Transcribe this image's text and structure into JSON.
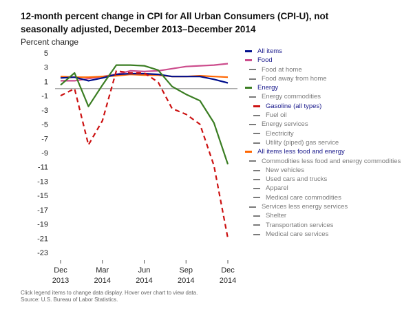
{
  "title": "12-month percent change in CPI for All Urban Consumers (CPI-U), not seasonally adjusted, December 2013–December 2014",
  "footnote": {
    "line1": "Click legend items to change data display. Hover over chart to view data.",
    "line2": "Source: U.S. Bureau of Labor Statistics."
  },
  "chart_data": {
    "type": "line",
    "ylabel": "Percent change",
    "ylim": [
      -23,
      5
    ],
    "yticks": [
      5,
      3,
      1,
      -1,
      -3,
      -5,
      -7,
      -9,
      -11,
      -13,
      -15,
      -17,
      -19,
      -21,
      -23
    ],
    "x": [
      "Dec 2013",
      "Jan 2014",
      "Feb 2014",
      "Mar 2014",
      "Apr 2014",
      "May 2014",
      "Jun 2014",
      "Jul 2014",
      "Aug 2014",
      "Sep 2014",
      "Oct 2014",
      "Nov 2014",
      "Dec 2014"
    ],
    "xticks": [
      {
        "index": 0,
        "line1": "Dec",
        "line2": "2013"
      },
      {
        "index": 3,
        "line1": "Mar",
        "line2": "2014"
      },
      {
        "index": 6,
        "line1": "Jun",
        "line2": "2014"
      },
      {
        "index": 9,
        "line1": "Sep",
        "line2": "2014"
      },
      {
        "index": 12,
        "line1": "Dec",
        "line2": "2014"
      }
    ],
    "series": [
      {
        "name": "All items",
        "color": "#000e8c",
        "dash": false,
        "values": [
          1.5,
          1.6,
          1.1,
          1.5,
          2.0,
          2.1,
          2.1,
          2.0,
          1.7,
          1.7,
          1.7,
          1.3,
          0.8
        ]
      },
      {
        "name": "Food",
        "color": "#cc4c8c",
        "dash": false,
        "values": [
          1.1,
          1.1,
          1.4,
          1.7,
          2.0,
          2.5,
          2.4,
          2.5,
          2.8,
          3.1,
          3.2,
          3.3,
          3.5
        ]
      },
      {
        "name": "Energy",
        "color": "#3a7d22",
        "dash": false,
        "values": [
          0.5,
          2.2,
          -2.5,
          0.5,
          3.3,
          3.3,
          3.2,
          2.6,
          0.3,
          -0.8,
          -1.7,
          -4.8,
          -10.6
        ]
      },
      {
        "name": "Gasoline (all types)",
        "color": "#cc1111",
        "dash": true,
        "values": [
          -1.0,
          0.0,
          -7.9,
          -4.5,
          2.5,
          2.2,
          2.2,
          0.9,
          -2.8,
          -3.6,
          -5.0,
          -10.8,
          -21.0
        ]
      },
      {
        "name": "All items less food and energy",
        "color": "#ff6600",
        "dash": false,
        "values": [
          1.7,
          1.6,
          1.6,
          1.7,
          1.8,
          2.0,
          1.9,
          1.9,
          1.7,
          1.7,
          1.8,
          1.7,
          1.6
        ]
      }
    ],
    "zero_line": true
  },
  "legend": [
    {
      "label": "All items",
      "color": "#000e8c",
      "active": true,
      "indent": 0
    },
    {
      "label": "Food",
      "color": "#cc4c8c",
      "active": true,
      "indent": 0
    },
    {
      "label": "Food at home",
      "color": "#7a7a7a",
      "active": false,
      "indent": 1
    },
    {
      "label": "Food away from home",
      "color": "#7a7a7a",
      "active": false,
      "indent": 1
    },
    {
      "label": "Energy",
      "color": "#3a7d22",
      "active": true,
      "indent": 0
    },
    {
      "label": "Energy commodities",
      "color": "#7a7a7a",
      "active": false,
      "indent": 1
    },
    {
      "label": "Gasoline (all types)",
      "color": "#cc1111",
      "active": true,
      "indent": 2
    },
    {
      "label": "Fuel oil",
      "color": "#7a7a7a",
      "active": false,
      "indent": 2
    },
    {
      "label": "Energy services",
      "color": "#7a7a7a",
      "active": false,
      "indent": 1
    },
    {
      "label": "Electricity",
      "color": "#7a7a7a",
      "active": false,
      "indent": 2
    },
    {
      "label": "Utility (piped) gas service",
      "color": "#7a7a7a",
      "active": false,
      "indent": 2
    },
    {
      "label": "All items less food and energy",
      "color": "#ff6600",
      "active": true,
      "indent": 0
    },
    {
      "label": "Commodities less food and energy commodities",
      "color": "#7a7a7a",
      "active": false,
      "indent": 1
    },
    {
      "label": "New vehicles",
      "color": "#7a7a7a",
      "active": false,
      "indent": 2
    },
    {
      "label": "Used cars and trucks",
      "color": "#7a7a7a",
      "active": false,
      "indent": 2
    },
    {
      "label": "Apparel",
      "color": "#7a7a7a",
      "active": false,
      "indent": 2
    },
    {
      "label": "Medical care commodities",
      "color": "#7a7a7a",
      "active": false,
      "indent": 2
    },
    {
      "label": "Services less energy services",
      "color": "#7a7a7a",
      "active": false,
      "indent": 1
    },
    {
      "label": "Shelter",
      "color": "#7a7a7a",
      "active": false,
      "indent": 2
    },
    {
      "label": "Transportation services",
      "color": "#7a7a7a",
      "active": false,
      "indent": 2
    },
    {
      "label": "Medical care services",
      "color": "#7a7a7a",
      "active": false,
      "indent": 2
    }
  ]
}
